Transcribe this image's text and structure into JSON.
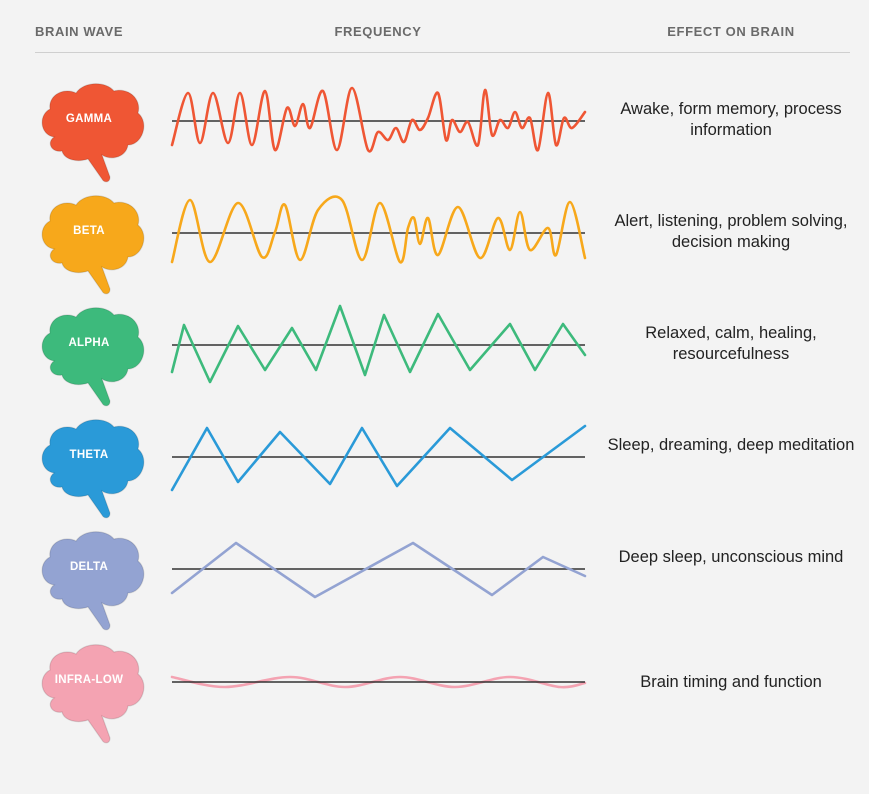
{
  "headers": {
    "brain_wave": "BRAIN WAVE",
    "frequency": "FREQUENCY",
    "effect": "EFFECT ON BRAIN"
  },
  "waves": [
    {
      "name": "GAMMA",
      "color": "#ef5634",
      "effect": "Awake, form memory, process information"
    },
    {
      "name": "BETA",
      "color": "#f7a81b",
      "effect": "Alert, listening, problem solving, decision making"
    },
    {
      "name": "ALPHA",
      "color": "#3dba7c",
      "effect": "Relaxed, calm, healing, resourcefulness"
    },
    {
      "name": "THETA",
      "color": "#2a9ad8",
      "effect": "Sleep, dreaming, deep meditation"
    },
    {
      "name": "DELTA",
      "color": "#93a3d2",
      "effect": "Deep sleep, unconscious mind"
    },
    {
      "name": "INFRA-LOW",
      "color": "#f4a3b2",
      "effect": "Brain timing and function"
    }
  ]
}
